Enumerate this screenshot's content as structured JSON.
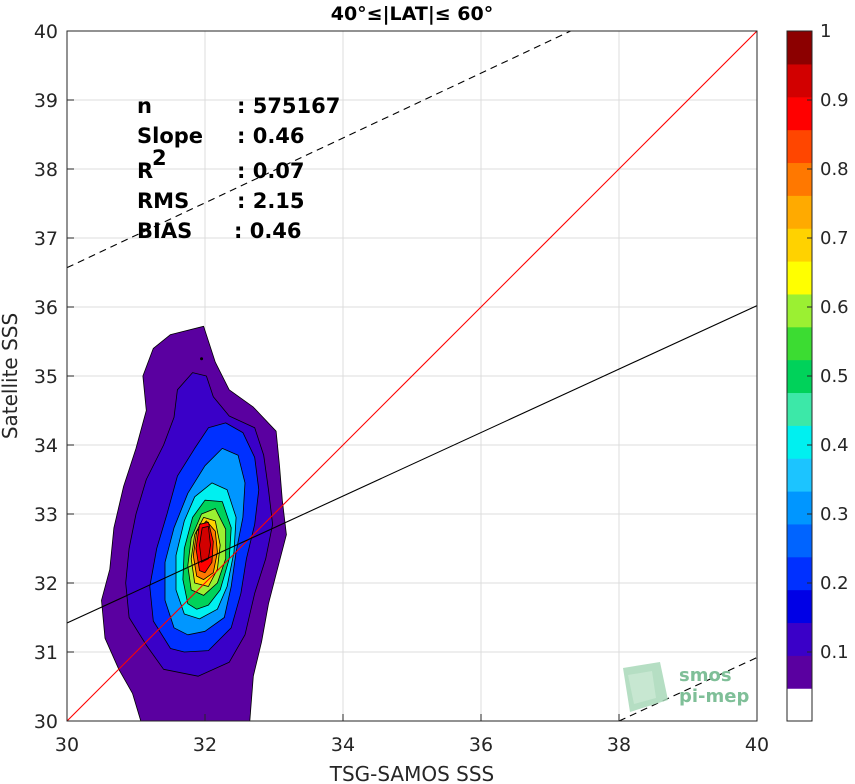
{
  "chart_data": {
    "type": "contour",
    "title": "40°≤|LAT|≤ 60°",
    "xlabel": "TSG-SAMOS SSS",
    "ylabel": "Satellite SSS",
    "xlim": [
      30,
      40
    ],
    "ylim": [
      30,
      40
    ],
    "xticks": [
      "30",
      "32",
      "34",
      "36",
      "38",
      "40"
    ],
    "yticks": [
      "30",
      "31",
      "32",
      "33",
      "34",
      "35",
      "36",
      "37",
      "38",
      "39",
      "40"
    ],
    "grid": true,
    "stats": [
      {
        "label": "n",
        "value": ": 575167"
      },
      {
        "label": "Slope",
        "value": ": 0.46"
      },
      {
        "label": "R",
        "sup": "2",
        "value": ": 0.07"
      },
      {
        "label": "RMS",
        "value": ": 2.15"
      },
      {
        "label": "BIAS",
        "value": ": 0.46"
      }
    ],
    "lines": [
      {
        "role": "identity",
        "color": "#ff0000",
        "style": "solid",
        "points": [
          [
            30,
            30
          ],
          [
            40,
            40
          ]
        ]
      },
      {
        "role": "regression",
        "color": "#000000",
        "style": "solid",
        "points": [
          [
            30,
            31.42
          ],
          [
            40,
            36.02
          ]
        ]
      },
      {
        "role": "upper-bound",
        "color": "#000000",
        "style": "dashed",
        "points": [
          [
            30,
            36.57
          ],
          [
            37.3,
            40
          ]
        ]
      },
      {
        "role": "lower-bound",
        "color": "#000000",
        "style": "dashed",
        "points": [
          [
            38,
            30
          ],
          [
            40,
            30.92
          ]
        ]
      }
    ],
    "colorbar": {
      "min": 0,
      "max": 1,
      "step": 0.05,
      "ticks": [
        "0.1",
        "0.2",
        "0.3",
        "0.4",
        "0.5",
        "0.6",
        "0.7",
        "0.8",
        "0.9",
        "1"
      ],
      "colors": [
        "#ffffff",
        "#5a00a0",
        "#3a00c8",
        "#0000e6",
        "#0030ff",
        "#0064ff",
        "#0096ff",
        "#1cc4ff",
        "#00f0f0",
        "#3ce8a8",
        "#00d25a",
        "#3cdc32",
        "#9bf032",
        "#ffff00",
        "#ffd200",
        "#ffaa00",
        "#ff7800",
        "#ff4600",
        "#ff0000",
        "#d20000",
        "#8c0000"
      ]
    },
    "contours": [
      {
        "level": 0.05,
        "points": [
          [
            31.07,
            30
          ],
          [
            30.95,
            30.4
          ],
          [
            30.75,
            30.75
          ],
          [
            30.55,
            31.2
          ],
          [
            30.5,
            31.75
          ],
          [
            30.62,
            32.2
          ],
          [
            30.68,
            32.8
          ],
          [
            30.82,
            33.4
          ],
          [
            31.0,
            33.95
          ],
          [
            31.15,
            34.5
          ],
          [
            31.1,
            35.0
          ],
          [
            31.25,
            35.4
          ],
          [
            31.5,
            35.6
          ],
          [
            31.98,
            35.72
          ],
          [
            32.15,
            35.2
          ],
          [
            32.35,
            34.8
          ],
          [
            32.7,
            34.55
          ],
          [
            33.03,
            34.2
          ],
          [
            33.08,
            33.7
          ],
          [
            33.12,
            33.2
          ],
          [
            33.18,
            32.7
          ],
          [
            33.05,
            32.2
          ],
          [
            32.92,
            31.7
          ],
          [
            32.82,
            31.15
          ],
          [
            32.7,
            30.65
          ],
          [
            32.65,
            30
          ]
        ]
      },
      {
        "level": 0.1,
        "points": [
          [
            31.4,
            30.75
          ],
          [
            31.15,
            31.1
          ],
          [
            30.9,
            31.5
          ],
          [
            30.85,
            32.0
          ],
          [
            30.9,
            32.5
          ],
          [
            31.0,
            33.0
          ],
          [
            31.15,
            33.5
          ],
          [
            31.4,
            34.0
          ],
          [
            31.55,
            34.4
          ],
          [
            31.6,
            34.8
          ],
          [
            31.82,
            35.05
          ],
          [
            32.02,
            35.0
          ],
          [
            32.12,
            34.7
          ],
          [
            32.35,
            34.42
          ],
          [
            32.72,
            34.25
          ],
          [
            32.85,
            33.85
          ],
          [
            32.92,
            33.35
          ],
          [
            32.98,
            32.85
          ],
          [
            32.88,
            32.35
          ],
          [
            32.72,
            31.85
          ],
          [
            32.58,
            31.25
          ],
          [
            32.35,
            30.85
          ],
          [
            31.9,
            30.65
          ]
        ]
      },
      {
        "level": 0.2,
        "points": [
          [
            31.5,
            31.05
          ],
          [
            31.25,
            31.45
          ],
          [
            31.2,
            31.95
          ],
          [
            31.3,
            32.5
          ],
          [
            31.45,
            33.0
          ],
          [
            31.6,
            33.55
          ],
          [
            31.85,
            33.95
          ],
          [
            32.05,
            34.25
          ],
          [
            32.3,
            34.32
          ],
          [
            32.55,
            34.18
          ],
          [
            32.72,
            33.82
          ],
          [
            32.78,
            33.35
          ],
          [
            32.72,
            32.85
          ],
          [
            32.6,
            32.35
          ],
          [
            32.52,
            31.85
          ],
          [
            32.38,
            31.35
          ],
          [
            32.05,
            31.02
          ],
          [
            31.7,
            31.0
          ]
        ]
      },
      {
        "level": 0.3,
        "points": [
          [
            31.55,
            31.35
          ],
          [
            31.42,
            31.75
          ],
          [
            31.42,
            32.3
          ],
          [
            31.55,
            32.8
          ],
          [
            31.75,
            33.3
          ],
          [
            32.0,
            33.7
          ],
          [
            32.25,
            33.95
          ],
          [
            32.48,
            33.85
          ],
          [
            32.58,
            33.45
          ],
          [
            32.55,
            32.95
          ],
          [
            32.45,
            32.45
          ],
          [
            32.38,
            31.95
          ],
          [
            32.28,
            31.5
          ],
          [
            32.0,
            31.3
          ],
          [
            31.75,
            31.25
          ]
        ]
      },
      {
        "level": 0.4,
        "points": [
          [
            31.7,
            31.55
          ],
          [
            31.58,
            31.9
          ],
          [
            31.58,
            32.4
          ],
          [
            31.7,
            32.9
          ],
          [
            31.85,
            33.25
          ],
          [
            32.1,
            33.45
          ],
          [
            32.32,
            33.35
          ],
          [
            32.45,
            32.95
          ],
          [
            32.42,
            32.45
          ],
          [
            32.32,
            31.95
          ],
          [
            32.18,
            31.62
          ],
          [
            31.92,
            31.48
          ]
        ]
      },
      {
        "level": 0.5,
        "points": [
          [
            31.75,
            31.7
          ],
          [
            31.68,
            32.05
          ],
          [
            31.7,
            32.5
          ],
          [
            31.82,
            32.95
          ],
          [
            32.0,
            33.2
          ],
          [
            32.25,
            33.18
          ],
          [
            32.38,
            32.8
          ],
          [
            32.35,
            32.35
          ],
          [
            32.22,
            31.9
          ],
          [
            32.05,
            31.68
          ],
          [
            31.88,
            31.62
          ]
        ]
      },
      {
        "level": 0.6,
        "points": [
          [
            31.8,
            31.9
          ],
          [
            31.75,
            32.25
          ],
          [
            31.8,
            32.65
          ],
          [
            31.95,
            33.0
          ],
          [
            32.15,
            33.08
          ],
          [
            32.3,
            32.78
          ],
          [
            32.3,
            32.35
          ],
          [
            32.18,
            32.0
          ],
          [
            31.98,
            31.82
          ]
        ]
      },
      {
        "level": 0.7,
        "points": [
          [
            31.85,
            32.0
          ],
          [
            31.8,
            32.35
          ],
          [
            31.85,
            32.7
          ],
          [
            31.98,
            32.95
          ],
          [
            32.15,
            32.9
          ],
          [
            32.22,
            32.55
          ],
          [
            32.18,
            32.2
          ],
          [
            32.05,
            31.95
          ]
        ]
      },
      {
        "level": 0.8,
        "points": [
          [
            31.88,
            32.1
          ],
          [
            31.83,
            32.4
          ],
          [
            31.88,
            32.75
          ],
          [
            32.02,
            32.9
          ],
          [
            32.15,
            32.75
          ],
          [
            32.18,
            32.45
          ],
          [
            32.12,
            32.15
          ],
          [
            31.98,
            32.05
          ]
        ]
      },
      {
        "level": 0.9,
        "points": [
          [
            31.92,
            32.18
          ],
          [
            31.87,
            32.5
          ],
          [
            31.92,
            32.85
          ],
          [
            32.05,
            32.88
          ],
          [
            32.12,
            32.6
          ],
          [
            32.1,
            32.3
          ],
          [
            32.0,
            32.15
          ]
        ]
      },
      {
        "level": 0.95,
        "points": [
          [
            31.95,
            32.3
          ],
          [
            31.92,
            32.55
          ],
          [
            31.96,
            32.8
          ],
          [
            32.05,
            32.82
          ],
          [
            32.08,
            32.55
          ],
          [
            32.05,
            32.35
          ]
        ]
      }
    ],
    "markers": [
      [
        31.95,
        35.25
      ]
    ]
  },
  "logo": {
    "line1": "smos",
    "line2": "pi-mep"
  }
}
